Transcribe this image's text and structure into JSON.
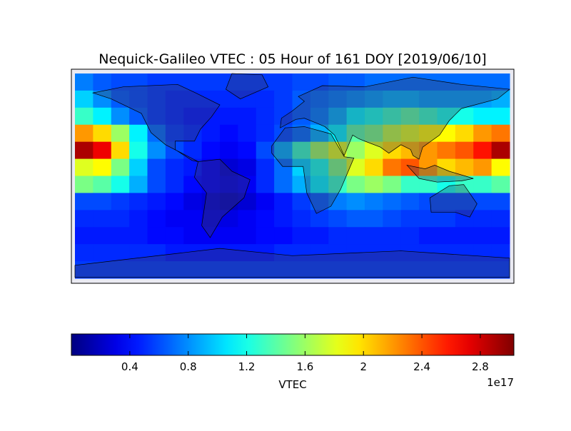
{
  "chart_data": {
    "type": "heatmap",
    "title": "Nequick-Galileo VTEC : 05 Hour of 161 DOY [2019/06/10]",
    "values": [
      [
        0.75,
        0.65,
        0.6,
        0.6,
        0.55,
        0.55,
        0.55,
        0.55,
        0.55,
        0.55,
        0.55,
        0.55,
        0.6,
        0.6,
        0.65,
        0.65,
        0.7,
        0.7,
        0.7,
        0.7,
        0.7,
        0.7,
        0.7,
        0.7
      ],
      [
        1.0,
        0.8,
        0.65,
        0.6,
        0.55,
        0.5,
        0.5,
        0.5,
        0.5,
        0.5,
        0.5,
        0.55,
        0.65,
        0.7,
        0.75,
        0.8,
        0.85,
        0.9,
        0.9,
        0.85,
        0.85,
        0.85,
        0.85,
        0.9
      ],
      [
        1.3,
        1.1,
        0.8,
        0.65,
        0.55,
        0.5,
        0.45,
        0.45,
        0.45,
        0.45,
        0.5,
        0.55,
        0.65,
        0.75,
        0.9,
        1.1,
        1.2,
        1.3,
        1.4,
        1.3,
        1.2,
        1.2,
        1.1,
        1.1
      ],
      [
        2.2,
        2.0,
        1.6,
        1.1,
        0.7,
        0.55,
        0.5,
        0.45,
        0.4,
        0.45,
        0.5,
        0.6,
        0.7,
        0.9,
        1.1,
        1.4,
        1.5,
        1.7,
        1.8,
        1.9,
        1.9,
        2.0,
        2.2,
        2.3
      ],
      [
        2.9,
        2.7,
        2.0,
        1.2,
        0.8,
        0.6,
        0.5,
        0.4,
        0.35,
        0.4,
        0.6,
        0.9,
        1.3,
        1.6,
        1.8,
        1.6,
        1.8,
        2.0,
        2.1,
        2.2,
        2.3,
        2.4,
        2.6,
        2.9
      ],
      [
        1.8,
        1.9,
        1.5,
        1.0,
        0.6,
        0.5,
        0.45,
        0.35,
        0.25,
        0.3,
        0.5,
        0.7,
        1.0,
        1.2,
        1.5,
        1.8,
        2.0,
        2.3,
        2.4,
        2.2,
        2.0,
        2.1,
        2.2,
        1.9
      ],
      [
        1.5,
        1.4,
        1.2,
        0.9,
        0.6,
        0.5,
        0.4,
        0.35,
        0.3,
        0.35,
        0.5,
        0.7,
        0.9,
        1.1,
        1.3,
        1.5,
        1.6,
        1.5,
        1.3,
        1.3,
        1.2,
        1.3,
        1.3,
        1.4
      ],
      [
        0.6,
        0.6,
        0.55,
        0.5,
        0.45,
        0.4,
        0.3,
        0.25,
        0.2,
        0.25,
        0.35,
        0.45,
        0.55,
        0.65,
        0.75,
        0.8,
        0.75,
        0.7,
        0.65,
        0.6,
        0.6,
        0.6,
        0.6,
        0.6
      ],
      [
        0.5,
        0.5,
        0.5,
        0.45,
        0.4,
        0.35,
        0.35,
        0.3,
        0.3,
        0.35,
        0.4,
        0.45,
        0.5,
        0.55,
        0.6,
        0.65,
        0.65,
        0.6,
        0.55,
        0.55,
        0.55,
        0.5,
        0.5,
        0.5
      ],
      [
        0.45,
        0.45,
        0.45,
        0.45,
        0.4,
        0.4,
        0.35,
        0.35,
        0.35,
        0.35,
        0.4,
        0.4,
        0.45,
        0.45,
        0.5,
        0.5,
        0.5,
        0.5,
        0.5,
        0.45,
        0.45,
        0.45,
        0.45,
        0.45
      ],
      [
        0.5,
        0.5,
        0.5,
        0.5,
        0.5,
        0.45,
        0.45,
        0.45,
        0.45,
        0.45,
        0.45,
        0.5,
        0.5,
        0.5,
        0.5,
        0.5,
        0.5,
        0.5,
        0.5,
        0.5,
        0.5,
        0.5,
        0.5,
        0.5
      ],
      [
        0.55,
        0.55,
        0.55,
        0.55,
        0.55,
        0.55,
        0.55,
        0.55,
        0.55,
        0.55,
        0.55,
        0.55,
        0.55,
        0.55,
        0.55,
        0.55,
        0.55,
        0.55,
        0.55,
        0.55,
        0.55,
        0.55,
        0.55,
        0.55
      ]
    ],
    "colorbar": {
      "label": "VTEC",
      "offset_label": "1e17",
      "clim": [
        0,
        3.03
      ],
      "ticks": [
        0.4,
        0.8,
        1.2,
        1.6,
        2.0,
        2.4,
        2.8
      ]
    }
  }
}
